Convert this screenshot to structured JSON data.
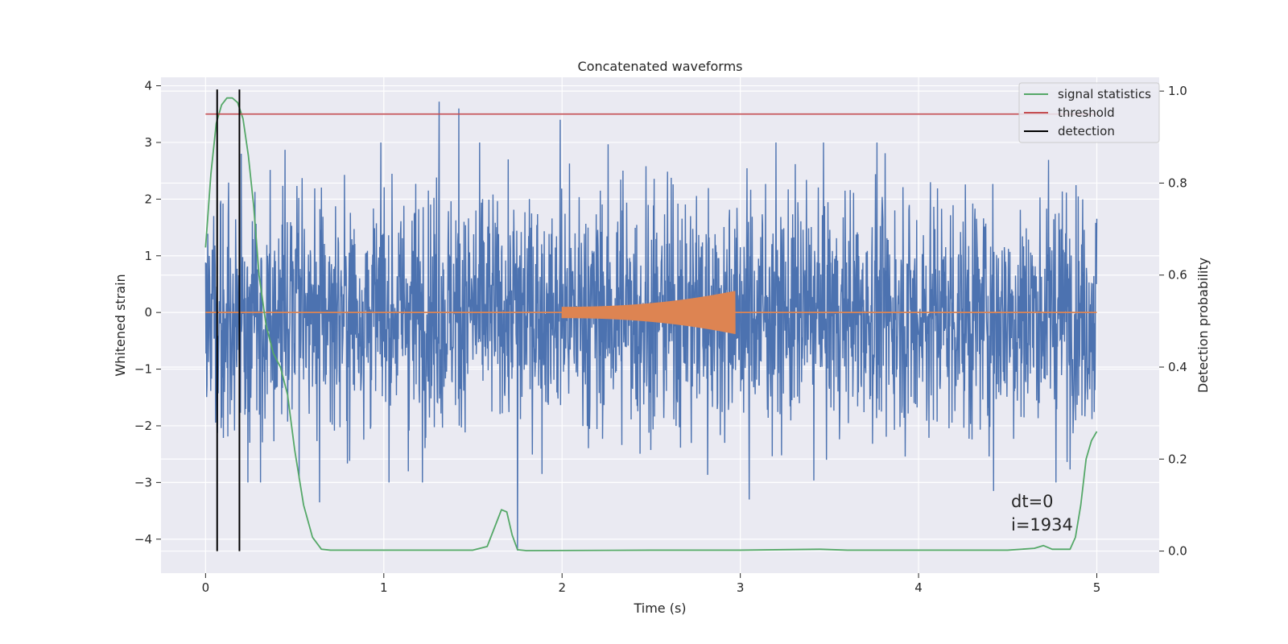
{
  "chart_data": {
    "type": "line",
    "title": "Concatenated waveforms",
    "xlabel": "Time (s)",
    "ylabel": "Whitened strain",
    "ylabel_right": "Detection probability",
    "xlim": [
      -0.25,
      5.35
    ],
    "ylim": [
      -4.6,
      4.15
    ],
    "ylim_right": [
      -0.048,
      1.03
    ],
    "xticks": [
      "0",
      "1",
      "2",
      "3",
      "4",
      "5"
    ],
    "yticks": [
      "−4",
      "−3",
      "−2",
      "−1",
      "0",
      "1",
      "2",
      "3",
      "4"
    ],
    "yticks_right": [
      "0.0",
      "0.2",
      "0.4",
      "0.6",
      "0.8",
      "1.0"
    ],
    "grid": true,
    "legend_position": "upper right",
    "legend": [
      {
        "label": "signal statistics",
        "color": "#55a868"
      },
      {
        "label": "threshold",
        "color": "#c44e52"
      },
      {
        "label": "detection",
        "color": "#000000"
      }
    ],
    "series": [
      {
        "name": "whitened strain",
        "color": "#4c72b0",
        "axis": "left",
        "x_range": [
          0,
          5
        ],
        "envelope_typical": 1.3,
        "notable_peaks": [
          {
            "x": 1.31,
            "y": 3.72
          },
          {
            "x": 1.42,
            "y": 3.6
          },
          {
            "x": 1.99,
            "y": 3.4
          },
          {
            "x": 0.2,
            "y": 2.8
          },
          {
            "x": 1.75,
            "y": -4.2
          },
          {
            "x": 0.64,
            "y": -3.35
          },
          {
            "x": 3.05,
            "y": -3.3
          },
          {
            "x": 4.42,
            "y": -3.15
          }
        ]
      },
      {
        "name": "injected waveform",
        "color": "#dd8452",
        "axis": "left",
        "x_start": 2.0,
        "x_end": 2.97,
        "amplitude_start": 0.1,
        "amplitude_end": 0.38
      },
      {
        "name": "signal statistics",
        "color": "#55a868",
        "axis": "right",
        "x": [
          0.0,
          0.03,
          0.06,
          0.09,
          0.12,
          0.15,
          0.18,
          0.21,
          0.24,
          0.27,
          0.3,
          0.34,
          0.38,
          0.42,
          0.46,
          0.5,
          0.55,
          0.6,
          0.65,
          0.7,
          1.0,
          1.5,
          1.58,
          1.62,
          1.66,
          1.69,
          1.72,
          1.75,
          1.8,
          2.5,
          3.0,
          3.45,
          3.6,
          4.5,
          4.65,
          4.7,
          4.75,
          4.85,
          4.88,
          4.91,
          4.94,
          4.97,
          5.0
        ],
        "y": [
          0.66,
          0.82,
          0.93,
          0.97,
          0.985,
          0.985,
          0.975,
          0.94,
          0.86,
          0.75,
          0.6,
          0.49,
          0.43,
          0.4,
          0.34,
          0.22,
          0.1,
          0.03,
          0.004,
          0.002,
          0.002,
          0.002,
          0.01,
          0.05,
          0.09,
          0.085,
          0.035,
          0.003,
          0.001,
          0.002,
          0.002,
          0.004,
          0.002,
          0.002,
          0.006,
          0.012,
          0.004,
          0.004,
          0.03,
          0.1,
          0.2,
          0.24,
          0.26
        ]
      },
      {
        "name": "threshold",
        "color": "#c44e52",
        "axis": "right",
        "x": [
          0.0,
          5.0
        ],
        "y": [
          0.95,
          0.95
        ]
      },
      {
        "name": "detection",
        "color": "#000000",
        "axis": "right",
        "vlines_x": [
          0.065,
          0.19
        ],
        "y_range": [
          0.0,
          1.0
        ]
      }
    ],
    "annotations": [
      "dt=0",
      "i=1934"
    ]
  }
}
